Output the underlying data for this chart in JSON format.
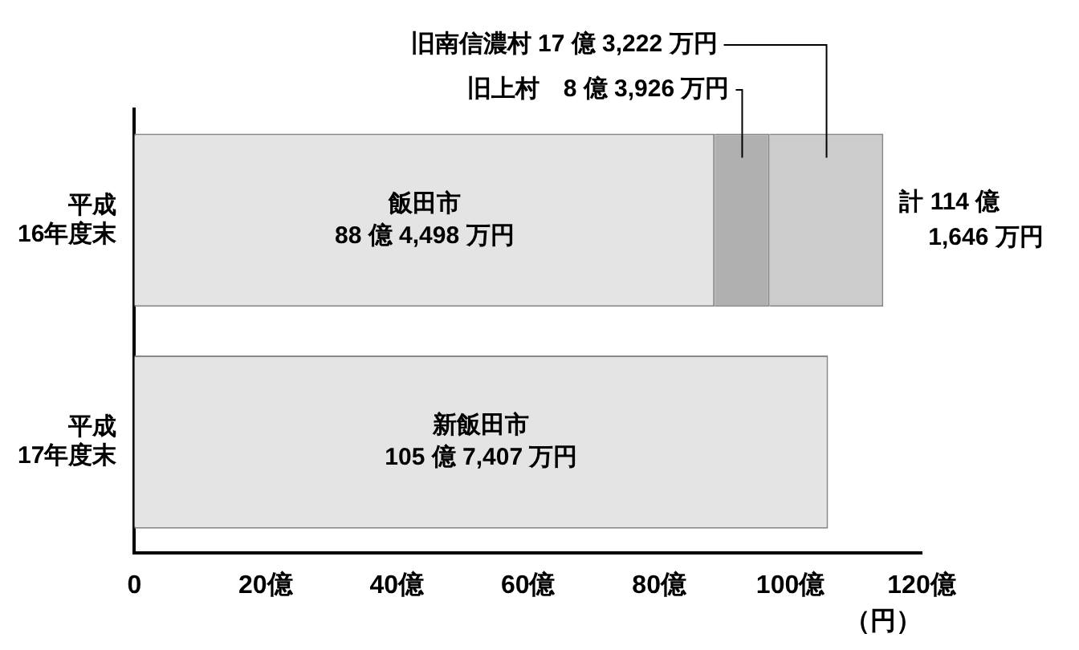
{
  "chart_data": {
    "type": "bar",
    "orientation": "horizontal",
    "stacked": true,
    "categories": [
      "平成\n16年度末",
      "平成\n17年度末"
    ],
    "series": [
      {
        "color": "#e4e4e4",
        "values": [
          88.4498,
          105.7407
        ],
        "value_labels": [
          "飯田市\n88 億 4,498 万円",
          "新飯田市\n105 億 7,407 万円"
        ]
      },
      {
        "color": "#b0b0b0",
        "values": [
          8.3926,
          null
        ],
        "value_labels": [
          "旧上村　8 億 3,926 万円",
          null
        ]
      },
      {
        "color": "#cccccc",
        "values": [
          17.3222,
          null
        ],
        "value_labels": [
          "旧南信濃村 17 億 3,222 万円",
          null
        ]
      }
    ],
    "totals": [
      "計 114 億\n1,646 万円",
      null
    ],
    "xlim": [
      0,
      120
    ],
    "xticks": [
      0,
      {
        "value": 20,
        "label": "20億"
      },
      {
        "value": 40,
        "label": "40億"
      },
      {
        "value": 60,
        "label": "60億"
      },
      {
        "value": 80,
        "label": "80億"
      },
      {
        "value": 100,
        "label": "100億"
      },
      {
        "value": 120,
        "label": "120億"
      }
    ],
    "xlabel": "（円）"
  }
}
